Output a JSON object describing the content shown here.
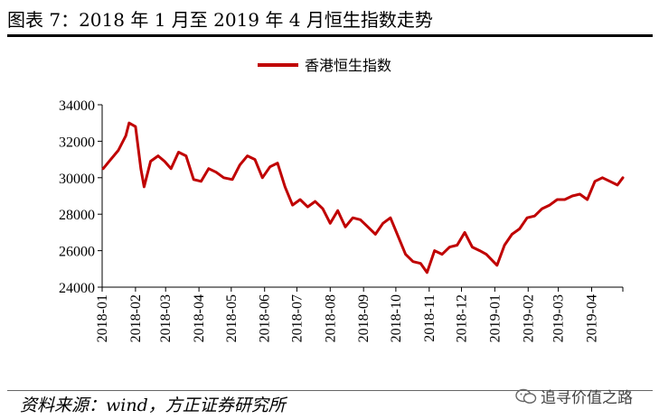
{
  "figure": {
    "title": "图表 7：2018 年 1 月至 2019 年 4 月恒生指数走势",
    "source": "资料来源：wind，方正证券研究所",
    "watermark": "追寻价值之路",
    "watermark_icon": "wechat-icon"
  },
  "chart_data": {
    "type": "line",
    "title": "",
    "xlabel": "",
    "ylabel": "",
    "ylim": [
      24000,
      34000
    ],
    "yticks": [
      24000,
      26000,
      28000,
      30000,
      32000,
      34000
    ],
    "xticks": [
      "2018-01",
      "2018-02",
      "2018-03",
      "2018-04",
      "2018-05",
      "2018-06",
      "2018-07",
      "2018-08",
      "2018-09",
      "2018-10",
      "2018-11",
      "2018-12",
      "2019-01",
      "2019-02",
      "2019-03",
      "2019-04"
    ],
    "grid": false,
    "legend": "top-center",
    "series": [
      {
        "name": "香港恒生指数",
        "color": "#c00000",
        "x": [
          "2018-01-02",
          "2018-01-09",
          "2018-01-16",
          "2018-01-23",
          "2018-01-26",
          "2018-02-01",
          "2018-02-06",
          "2018-02-09",
          "2018-02-15",
          "2018-02-22",
          "2018-02-28",
          "2018-03-06",
          "2018-03-13",
          "2018-03-20",
          "2018-03-27",
          "2018-04-03",
          "2018-04-10",
          "2018-04-17",
          "2018-04-24",
          "2018-05-02",
          "2018-05-09",
          "2018-05-16",
          "2018-05-23",
          "2018-05-30",
          "2018-06-06",
          "2018-06-13",
          "2018-06-20",
          "2018-06-27",
          "2018-07-04",
          "2018-07-11",
          "2018-07-18",
          "2018-07-25",
          "2018-08-01",
          "2018-08-08",
          "2018-08-15",
          "2018-08-22",
          "2018-08-29",
          "2018-09-05",
          "2018-09-12",
          "2018-09-19",
          "2018-09-26",
          "2018-10-03",
          "2018-10-10",
          "2018-10-17",
          "2018-10-24",
          "2018-10-30",
          "2018-11-06",
          "2018-11-13",
          "2018-11-20",
          "2018-11-27",
          "2018-12-04",
          "2018-12-11",
          "2018-12-18",
          "2018-12-24",
          "2019-01-03",
          "2019-01-10",
          "2019-01-17",
          "2019-01-24",
          "2019-01-31",
          "2019-02-07",
          "2019-02-14",
          "2019-02-21",
          "2019-02-28",
          "2019-03-07",
          "2019-03-14",
          "2019-03-21",
          "2019-03-28",
          "2019-04-04",
          "2019-04-11",
          "2019-04-18",
          "2019-04-25",
          "2019-04-30"
        ],
        "values": [
          30500,
          31000,
          31500,
          32300,
          33000,
          32800,
          30500,
          29500,
          30900,
          31200,
          30900,
          30500,
          31400,
          31200,
          29900,
          29800,
          30500,
          30300,
          30000,
          29900,
          30700,
          31200,
          31000,
          30000,
          30600,
          30800,
          29500,
          28500,
          28800,
          28400,
          28700,
          28300,
          27500,
          28200,
          27300,
          27800,
          27700,
          27300,
          26900,
          27500,
          27800,
          26800,
          25800,
          25400,
          25300,
          24800,
          26000,
          25800,
          26200,
          26300,
          27000,
          26200,
          26000,
          25800,
          25200,
          26300,
          26900,
          27200,
          27800,
          27900,
          28300,
          28500,
          28800,
          28800,
          29000,
          29100,
          28800,
          29800,
          30000,
          29800,
          29600,
          30000
        ]
      }
    ]
  }
}
